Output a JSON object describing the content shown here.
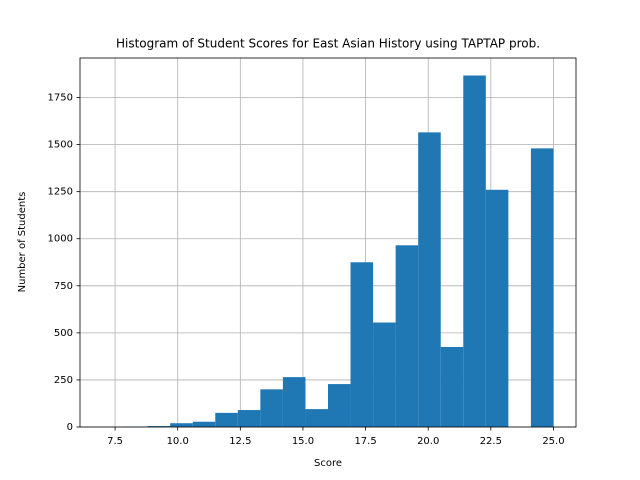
{
  "chart_data": {
    "type": "histogram",
    "title": "Histogram of Student Scores for East Asian History using TAPTAP prob.",
    "x_label": "Score",
    "y_label": "Number of Students",
    "bins": [
      7.0,
      7.9,
      8.8,
      9.7,
      10.6,
      11.5,
      12.4,
      13.3,
      14.2,
      15.1,
      16.0,
      16.9,
      17.8,
      18.7,
      19.6,
      20.5,
      21.4,
      22.3,
      23.2,
      24.1,
      25.0
    ],
    "values": [
      0,
      2,
      5,
      20,
      28,
      75,
      90,
      200,
      265,
      95,
      228,
      875,
      555,
      965,
      1565,
      425,
      1867,
      1260,
      0,
      1480
    ],
    "color": "#1f77b4",
    "xlim": [
      6.1,
      25.9
    ],
    "xticks": [
      {
        "value": 7.5,
        "label": "7.5"
      },
      {
        "value": 10,
        "label": "10.0"
      },
      {
        "value": 12.5,
        "label": "12.5"
      },
      {
        "value": 15,
        "label": "15.0"
      },
      {
        "value": 17.5,
        "label": "17.5"
      },
      {
        "value": 20,
        "label": "20.0"
      },
      {
        "value": 22.5,
        "label": "22.5"
      },
      {
        "value": 25,
        "label": "25.0"
      }
    ],
    "ylim": [
      0,
      1960
    ],
    "yticks": [
      0,
      250,
      500,
      750,
      1000,
      1250,
      1500,
      1750
    ],
    "grid": true
  }
}
